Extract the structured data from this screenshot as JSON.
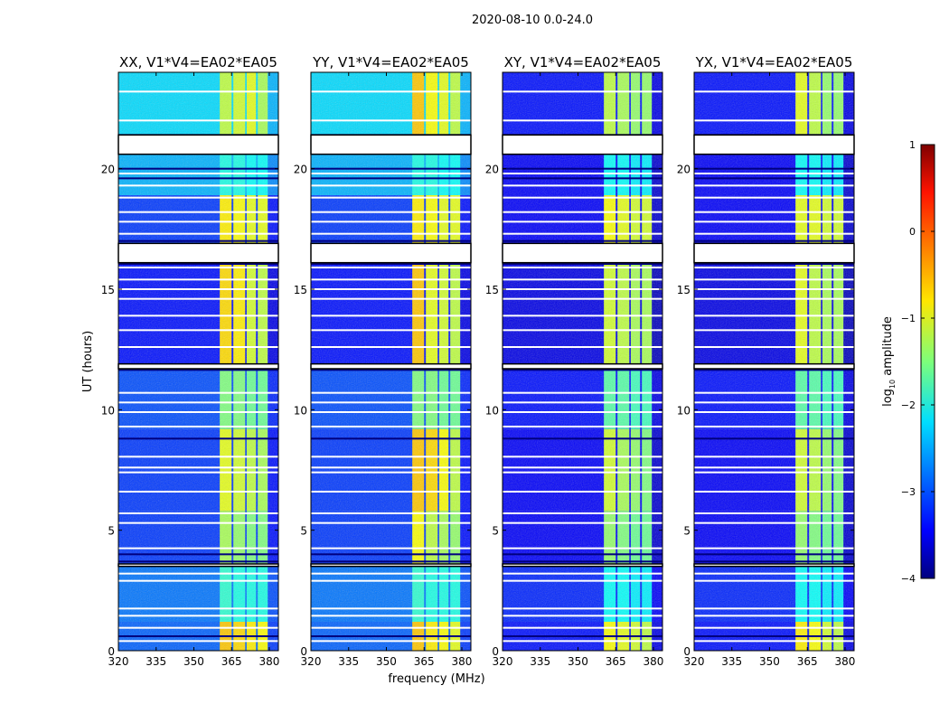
{
  "chart_data": {
    "type": "heatmap",
    "title": "2020-08-10 0.0-24.0",
    "xlabel": "frequency (MHz)",
    "ylabel": "UT (hours)",
    "xlim": [
      320,
      383.6
    ],
    "ylim": [
      0,
      24
    ],
    "xticks": [
      320,
      335,
      350,
      365,
      380
    ],
    "yticks": [
      0,
      5,
      10,
      15,
      20
    ],
    "colorbar": {
      "label": "log",
      "label_sub": "10",
      "label_rest": " amplitude",
      "range": [
        -4,
        1
      ],
      "ticks": [
        1,
        0,
        -1,
        -2,
        -3,
        -4
      ],
      "tick_labels": [
        "1",
        "0",
        "−1",
        "−2",
        "−3",
        "−4"
      ],
      "colormap": "jet"
    },
    "rfi_bands_mhz": [
      [
        360.3,
        365.0
      ],
      [
        365.7,
        370.4
      ],
      [
        371.0,
        374.7
      ],
      [
        375.4,
        379.4
      ]
    ],
    "time_segments": [
      {
        "t": [
          0.0,
          1.2
        ]
      },
      {
        "t": [
          1.2,
          3.5
        ]
      },
      {
        "t": [
          3.6,
          5.8
        ]
      },
      {
        "t": [
          5.8,
          9.2
        ]
      },
      {
        "t": [
          9.2,
          11.7
        ]
      },
      {
        "t": [
          11.9,
          16.1
        ]
      },
      {
        "t": [
          16.9,
          18.9
        ]
      },
      {
        "t": [
          18.9,
          20.6
        ]
      },
      {
        "t": [
          21.4,
          24.0
        ]
      }
    ],
    "flagged_gaps_hours": [
      [
        20.6,
        21.4
      ],
      [
        16.1,
        16.9
      ],
      [
        11.7,
        11.9
      ],
      [
        3.5,
        3.6
      ]
    ],
    "flagged_lines_hours": [
      0.4,
      0.95,
      1.45,
      1.75,
      2.9,
      3.2,
      4.25,
      5.3,
      5.7,
      6.6,
      7.4,
      7.6,
      8.05,
      9.3,
      9.9,
      10.3,
      10.7,
      12.6,
      13.3,
      13.9,
      14.6,
      15.0,
      15.4,
      15.9,
      17.3,
      17.8,
      18.2,
      18.8,
      19.3,
      19.8,
      22.0,
      23.2
    ],
    "dark_lines_hours": [
      0.6,
      3.7,
      4.0,
      8.8,
      11.65,
      17.0,
      21.4,
      16.05,
      19.6,
      20.0
    ],
    "panels": [
      {
        "title": "XX, V1*V4=EA02*EA05",
        "background": [
          -2.9,
          -2.8,
          -3.1,
          -3.1,
          -3.0,
          -3.3,
          -3.1,
          -2.5,
          -2.3
        ],
        "rfi": [
          [
            -0.6,
            -0.7,
            -0.8,
            -0.9
          ],
          [
            -1.9,
            -2.0,
            -2.0,
            -2.0
          ],
          [
            -1.3,
            -1.4,
            -1.5,
            -1.5
          ],
          [
            -1.0,
            -1.1,
            -1.2,
            -1.3
          ],
          [
            -1.5,
            -1.5,
            -1.6,
            -1.6
          ],
          [
            -0.7,
            -0.8,
            -1.1,
            -1.2
          ],
          [
            -0.8,
            -0.9,
            -1.0,
            -1.0
          ],
          [
            -2.0,
            -2.0,
            -2.1,
            -2.1
          ],
          [
            -1.2,
            -1.1,
            -1.0,
            -1.3
          ]
        ]
      },
      {
        "title": "YY, V1*V4=EA02*EA05",
        "background": [
          -2.9,
          -2.8,
          -3.1,
          -3.1,
          -3.0,
          -3.3,
          -3.1,
          -2.5,
          -2.3
        ],
        "rfi": [
          [
            -0.6,
            -0.8,
            -0.9,
            -1.0
          ],
          [
            -1.9,
            -2.0,
            -2.0,
            -2.0
          ],
          [
            -0.9,
            -1.2,
            -1.3,
            -1.4
          ],
          [
            -0.6,
            -0.7,
            -0.9,
            -1.2
          ],
          [
            -1.5,
            -1.5,
            -1.6,
            -1.6
          ],
          [
            -0.6,
            -1.0,
            -1.1,
            -1.2
          ],
          [
            -0.8,
            -0.9,
            -1.0,
            -1.0
          ],
          [
            -2.0,
            -2.0,
            -2.1,
            -2.1
          ],
          [
            -0.6,
            -0.9,
            -1.0,
            -1.2
          ]
        ]
      },
      {
        "title": "XY, V1*V4=EA02*EA05",
        "background": [
          -3.3,
          -3.2,
          -3.4,
          -3.4,
          -3.3,
          -3.5,
          -3.4,
          -3.4,
          -3.3
        ],
        "rfi": [
          [
            -0.9,
            -1.0,
            -1.1,
            -1.2
          ],
          [
            -2.1,
            -2.1,
            -2.2,
            -2.2
          ],
          [
            -1.4,
            -1.5,
            -1.6,
            -1.6
          ],
          [
            -1.1,
            -1.3,
            -1.4,
            -1.5
          ],
          [
            -1.7,
            -1.7,
            -1.8,
            -1.8
          ],
          [
            -1.1,
            -1.2,
            -1.3,
            -1.3
          ],
          [
            -0.9,
            -1.0,
            -1.1,
            -1.1
          ],
          [
            -2.1,
            -2.1,
            -2.2,
            -2.2
          ],
          [
            -1.2,
            -1.3,
            -1.4,
            -1.4
          ]
        ]
      },
      {
        "title": "YX, V1*V4=EA02*EA05",
        "background": [
          -3.3,
          -3.2,
          -3.4,
          -3.4,
          -3.3,
          -3.5,
          -3.4,
          -3.4,
          -3.3
        ],
        "rfi": [
          [
            -0.8,
            -0.9,
            -1.1,
            -1.2
          ],
          [
            -2.1,
            -2.1,
            -2.2,
            -2.2
          ],
          [
            -1.4,
            -1.5,
            -1.6,
            -1.6
          ],
          [
            -1.1,
            -1.2,
            -1.4,
            -1.5
          ],
          [
            -1.7,
            -1.7,
            -1.8,
            -1.8
          ],
          [
            -1.0,
            -1.2,
            -1.3,
            -1.3
          ],
          [
            -1.0,
            -1.0,
            -1.1,
            -1.1
          ],
          [
            -2.1,
            -2.1,
            -2.2,
            -2.2
          ],
          [
            -1.0,
            -1.2,
            -1.4,
            -1.4
          ]
        ]
      }
    ]
  }
}
